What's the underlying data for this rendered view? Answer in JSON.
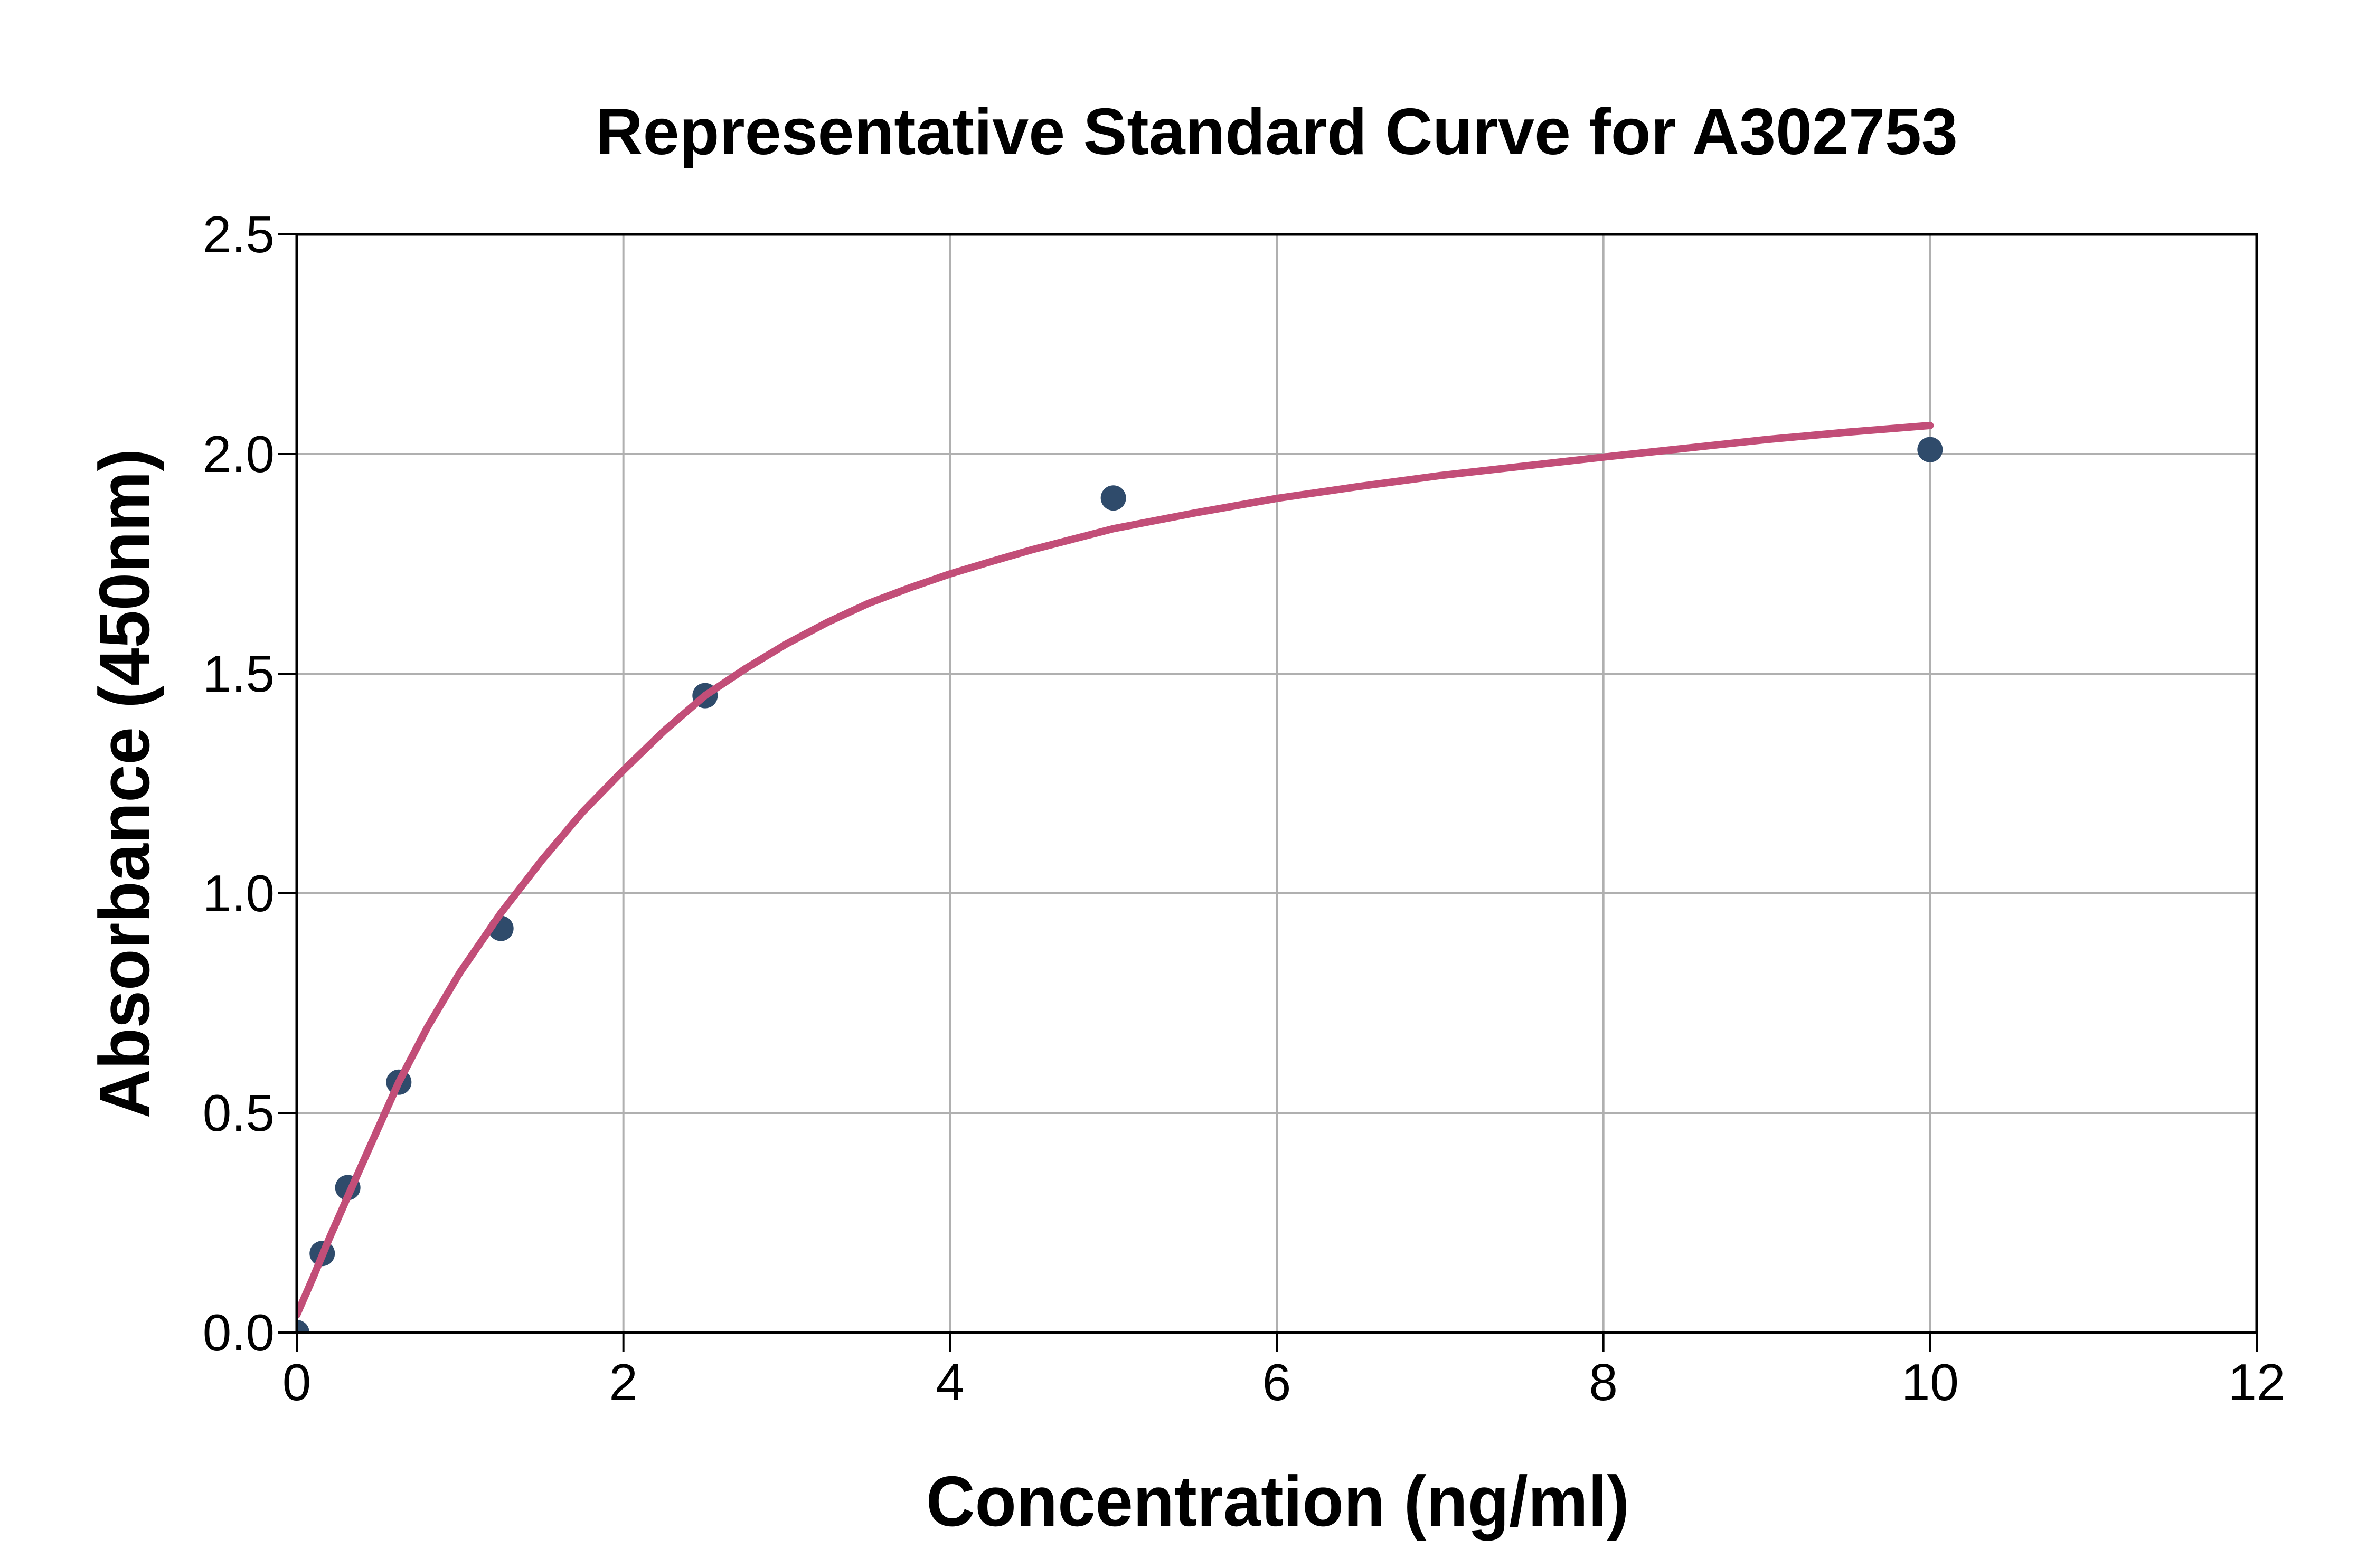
{
  "figure": {
    "title": "Representative Standard Curve for A302753",
    "x_axis": {
      "label": "Concentration (ng/ml)",
      "tick_labels": [
        "0",
        "2",
        "4",
        "6",
        "8",
        "10",
        "12"
      ]
    },
    "y_axis": {
      "label": "Absorbance (450nm)",
      "tick_labels": [
        "0.0",
        "0.5",
        "1.0",
        "1.5",
        "2.0",
        "2.5"
      ]
    }
  },
  "chart_data": {
    "type": "scatter",
    "title": "Representative Standard Curve for A302753",
    "xlabel": "Concentration (ng/ml)",
    "ylabel": "Absorbance (450nm)",
    "xlim": [
      0,
      12
    ],
    "ylim": [
      0,
      2.5
    ],
    "x_ticks": [
      0,
      2,
      4,
      6,
      8,
      10,
      12
    ],
    "y_ticks": [
      0,
      0.5,
      1,
      1.5,
      2,
      2.5
    ],
    "grid": true,
    "legend": "none",
    "series": [
      {
        "name": "standard-points",
        "type": "scatter",
        "marker": "circle",
        "points": [
          {
            "x": 0,
            "y": 0.0
          },
          {
            "x": 0.156,
            "y": 0.18
          },
          {
            "x": 0.3125,
            "y": 0.33
          },
          {
            "x": 0.625,
            "y": 0.57
          },
          {
            "x": 1.25,
            "y": 0.92
          },
          {
            "x": 2.5,
            "y": 1.45
          },
          {
            "x": 5,
            "y": 1.9
          },
          {
            "x": 10,
            "y": 2.01
          }
        ]
      },
      {
        "name": "fitted-curve",
        "type": "line",
        "points": [
          {
            "x": 0,
            "y": 0.04
          },
          {
            "x": 0.1,
            "y": 0.125
          },
          {
            "x": 0.2,
            "y": 0.215
          },
          {
            "x": 0.3125,
            "y": 0.31
          },
          {
            "x": 0.45,
            "y": 0.425
          },
          {
            "x": 0.625,
            "y": 0.57
          },
          {
            "x": 0.8,
            "y": 0.695
          },
          {
            "x": 1.0,
            "y": 0.82
          },
          {
            "x": 1.25,
            "y": 0.955
          },
          {
            "x": 1.5,
            "y": 1.075
          },
          {
            "x": 1.75,
            "y": 1.185
          },
          {
            "x": 2.0,
            "y": 1.28
          },
          {
            "x": 2.25,
            "y": 1.37
          },
          {
            "x": 2.5,
            "y": 1.45
          },
          {
            "x": 2.75,
            "y": 1.512
          },
          {
            "x": 3.0,
            "y": 1.568
          },
          {
            "x": 3.25,
            "y": 1.617
          },
          {
            "x": 3.5,
            "y": 1.66
          },
          {
            "x": 3.75,
            "y": 1.695
          },
          {
            "x": 4.0,
            "y": 1.727
          },
          {
            "x": 4.25,
            "y": 1.755
          },
          {
            "x": 4.5,
            "y": 1.782
          },
          {
            "x": 4.75,
            "y": 1.806
          },
          {
            "x": 5.0,
            "y": 1.83
          },
          {
            "x": 5.5,
            "y": 1.866
          },
          {
            "x": 6.0,
            "y": 1.899
          },
          {
            "x": 6.5,
            "y": 1.926
          },
          {
            "x": 7.0,
            "y": 1.951
          },
          {
            "x": 7.5,
            "y": 1.972
          },
          {
            "x": 8.0,
            "y": 1.993
          },
          {
            "x": 8.5,
            "y": 2.013
          },
          {
            "x": 9.0,
            "y": 2.033
          },
          {
            "x": 9.5,
            "y": 2.05
          },
          {
            "x": 10.0,
            "y": 2.065
          }
        ]
      }
    ],
    "colors": {
      "marker": "#2F4B6B",
      "curve": "#C24E78",
      "grid": "#B0B0B0",
      "axis": "#000000",
      "text": "#000000",
      "background": "#FFFFFF"
    }
  }
}
